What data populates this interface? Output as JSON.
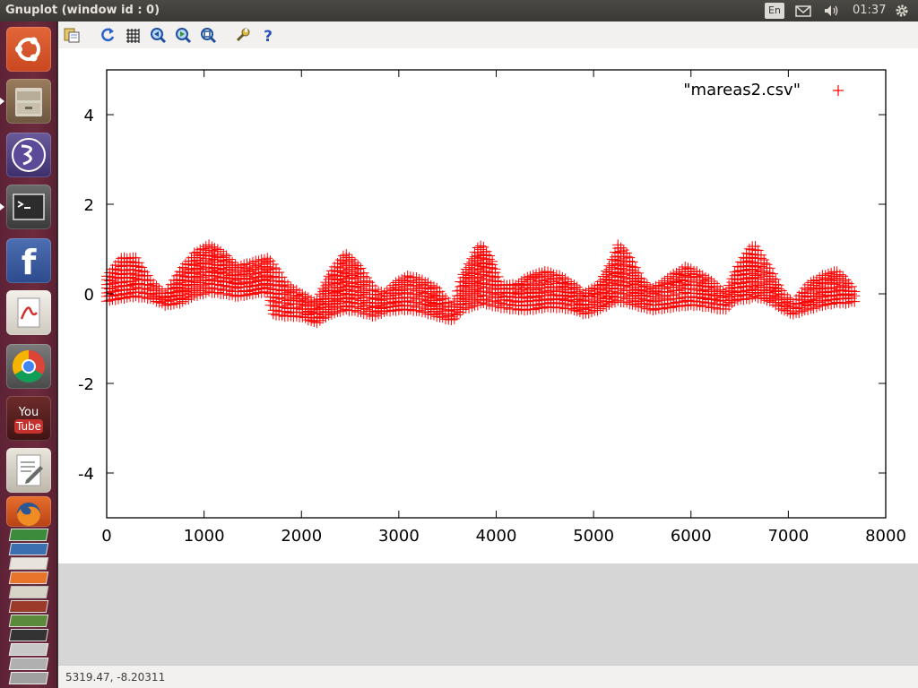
{
  "window": {
    "title": "Gnuplot (window id : 0)"
  },
  "panel": {
    "language": "En",
    "clock": "01:37"
  },
  "launcher": {
    "items": [
      {
        "name": "dash-home"
      },
      {
        "name": "files"
      },
      {
        "name": "emacs"
      },
      {
        "name": "terminal"
      },
      {
        "name": "facebook"
      },
      {
        "name": "pdf-viewer"
      },
      {
        "name": "chrome"
      },
      {
        "name": "youtube"
      },
      {
        "name": "text-editor"
      },
      {
        "name": "firefox"
      }
    ]
  },
  "toolbar": {
    "icons": [
      "copy-to-clipboard-icon",
      "replot-icon",
      "grid-icon",
      "zoom-previous-icon",
      "zoom-next-icon",
      "autoscale-icon",
      "preferences-icon",
      "help-icon"
    ]
  },
  "status": {
    "coordinates": "5319.47, -8.20311"
  },
  "chart_data": {
    "type": "scatter",
    "marker": "+",
    "color": "#ff0000",
    "legend_entry": "\"mareas2.csv\"",
    "legend_position": "top-right",
    "xlim": [
      0,
      8000
    ],
    "ylim": [
      -5,
      5
    ],
    "x_ticks": [
      "0",
      "1000",
      "2000",
      "3000",
      "4000",
      "5000",
      "6000",
      "7000",
      "8000"
    ],
    "x_tick_values": [
      0,
      1000,
      2000,
      3000,
      4000,
      5000,
      6000,
      7000,
      8000
    ],
    "y_ticks": [
      "4",
      "2",
      "0",
      "-2",
      "-4"
    ],
    "y_tick_values": [
      4,
      2,
      0,
      -2,
      -4
    ],
    "point_spacing": 30,
    "x_max": 7700,
    "envelope": {
      "x": [
        0,
        150,
        300,
        450,
        600,
        750,
        900,
        1050,
        1200,
        1350,
        1500,
        1650,
        1700,
        1850,
        2000,
        2150,
        2300,
        2450,
        2600,
        2750,
        2850,
        3000,
        3100,
        3250,
        3400,
        3550,
        3650,
        3800,
        3850,
        3950,
        4050,
        4200,
        4350,
        4500,
        4650,
        4800,
        4900,
        5050,
        5200,
        5250,
        5350,
        5500,
        5600,
        5800,
        5950,
        6050,
        6200,
        6350,
        6450,
        6600,
        6650,
        6800,
        6950,
        7050,
        7200,
        7350,
        7500,
        7600,
        7700
      ],
      "max": [
        0.4,
        0.8,
        0.8,
        0.3,
        0.0,
        0.5,
        0.9,
        1.1,
        0.9,
        0.6,
        0.7,
        0.8,
        0.7,
        0.2,
        0.0,
        -0.2,
        0.5,
        0.9,
        0.6,
        0.1,
        0.0,
        0.3,
        0.4,
        0.3,
        0.1,
        -0.3,
        0.4,
        1.0,
        1.1,
        0.8,
        0.2,
        0.2,
        0.4,
        0.5,
        0.4,
        0.2,
        0.0,
        0.2,
        0.8,
        1.1,
        0.9,
        0.3,
        0.1,
        0.4,
        0.6,
        0.5,
        0.3,
        0.0,
        0.5,
        1.0,
        1.1,
        0.6,
        0.0,
        -0.2,
        0.2,
        0.4,
        0.5,
        0.3,
        0.0
      ],
      "min": [
        -0.15,
        -0.1,
        -0.05,
        -0.1,
        -0.25,
        -0.2,
        -0.05,
        0.05,
        0.0,
        -0.05,
        0.0,
        0.05,
        -0.45,
        -0.5,
        -0.5,
        -0.65,
        -0.45,
        -0.35,
        -0.4,
        -0.5,
        -0.4,
        -0.35,
        -0.35,
        -0.4,
        -0.5,
        -0.6,
        -0.35,
        -0.25,
        -0.2,
        -0.25,
        -0.3,
        -0.35,
        -0.35,
        -0.3,
        -0.3,
        -0.35,
        -0.45,
        -0.35,
        -0.2,
        -0.15,
        -0.2,
        -0.3,
        -0.35,
        -0.3,
        -0.25,
        -0.25,
        -0.3,
        -0.35,
        -0.15,
        -0.1,
        -0.05,
        -0.15,
        -0.35,
        -0.45,
        -0.35,
        -0.25,
        -0.2,
        -0.2,
        -0.15
      ]
    }
  }
}
